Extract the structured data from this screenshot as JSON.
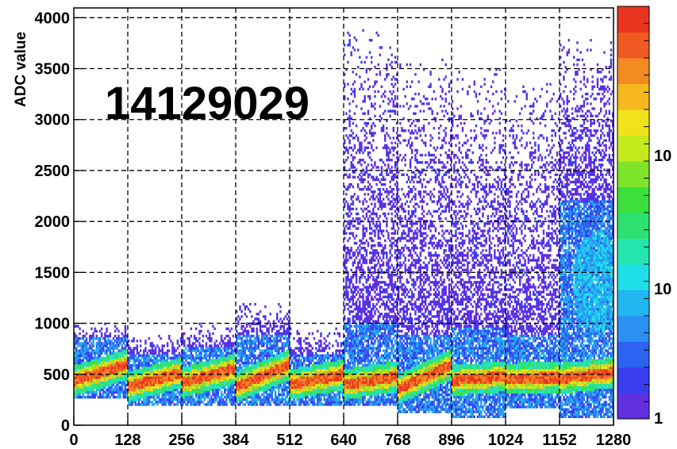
{
  "chart_data": {
    "type": "heatmap",
    "title": "",
    "xlabel": "",
    "ylabel": "ADC value",
    "annotation": "14129029",
    "xlim": [
      0,
      1280
    ],
    "ylim": [
      0,
      4096
    ],
    "x_ticks": [
      "0",
      "128",
      "256",
      "384",
      "512",
      "640",
      "768",
      "896",
      "1024",
      "1152",
      "1280"
    ],
    "x_tick_values": [
      0,
      128,
      256,
      384,
      512,
      640,
      768,
      896,
      1024,
      1152,
      1280
    ],
    "y_ticks": [
      "0",
      "500",
      "1000",
      "1500",
      "2000",
      "2500",
      "3000",
      "3500",
      "4000"
    ],
    "y_tick_values": [
      0,
      500,
      1000,
      1500,
      2000,
      2500,
      3000,
      3500,
      4000
    ],
    "z_scale": "log",
    "z_tick_labels": [
      "1",
      "10",
      "10"
    ],
    "grid": true,
    "colorbar_position": "right",
    "segments": [
      {
        "x_start": 0,
        "x_end": 128,
        "peak_start": 440,
        "peak_end": 600,
        "band_low": 260,
        "band_high": 860,
        "sparse_high": 1000
      },
      {
        "x_start": 128,
        "x_end": 256,
        "peak_start": 380,
        "peak_end": 520,
        "band_low": 200,
        "band_high": 700,
        "sparse_high": 900
      },
      {
        "x_start": 256,
        "x_end": 384,
        "peak_start": 420,
        "peak_end": 560,
        "band_low": 180,
        "band_high": 760,
        "sparse_high": 1000
      },
      {
        "x_start": 384,
        "x_end": 512,
        "peak_start": 380,
        "peak_end": 600,
        "band_low": 180,
        "band_high": 880,
        "sparse_high": 1200
      },
      {
        "x_start": 512,
        "x_end": 640,
        "peak_start": 400,
        "peak_end": 500,
        "band_low": 200,
        "band_high": 700,
        "sparse_high": 950
      },
      {
        "x_start": 640,
        "x_end": 768,
        "peak_start": 400,
        "peak_end": 480,
        "band_low": 200,
        "band_high": 1000,
        "sparse_high": 3900
      },
      {
        "x_start": 768,
        "x_end": 896,
        "peak_start": 360,
        "peak_end": 600,
        "band_low": 120,
        "band_high": 900,
        "sparse_high": 3600
      },
      {
        "x_start": 896,
        "x_end": 1024,
        "peak_start": 440,
        "peak_end": 480,
        "band_low": 80,
        "band_high": 950,
        "sparse_high": 3500
      },
      {
        "x_start": 1024,
        "x_end": 1152,
        "peak_start": 460,
        "peak_end": 470,
        "band_low": 160,
        "band_high": 900,
        "sparse_high": 3400
      },
      {
        "x_start": 1152,
        "x_end": 1280,
        "peak_start": 460,
        "peak_end": 520,
        "band_low": 80,
        "band_high": 2200,
        "sparse_high": 3800
      }
    ],
    "palette_colors": [
      "#5f2fe0",
      "#3a3df0",
      "#2d63f2",
      "#2a90f2",
      "#22b7f0",
      "#1fe0e8",
      "#26e6b0",
      "#2ee070",
      "#3be03c",
      "#7ee42a",
      "#c4ea1e",
      "#f2e21a",
      "#f5b81e",
      "#f48a22",
      "#f05a22",
      "#e83520"
    ]
  }
}
